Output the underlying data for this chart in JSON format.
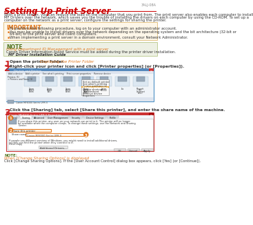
{
  "page_id": "3ALJ-08A",
  "title": "Setting Up Print Server",
  "intro_lines": [
    "With a print server, you can reduce the load on the computer that you print from. The print server also enables each computer to install",
    "MF Drivers over the network, which saves you the trouble of installing the drivers on each computer by using the CD-ROM. To set up a",
    "computer on the network as a print server, configure the settings for sharing the printer."
  ],
  "important_title": "IMPORTANT",
  "important_bullets": [
    "To perform the following procedure, log on to your computer with an administrator account.",
    "You may be unable to install drivers over the network depending on the operating system and the bit architecture (32-bit or 64-bit) of the print server and client computers.",
    "When implementing a print server in a domain environment, consult your Network Administrator."
  ],
  "note_title": "NOTE",
  "note_link": "Using Department ID Management with a print server",
  "note_text": "Canon Driver Information Assist Service must be added during the printer driver installation.",
  "note_bold": "MF Driver Installation Guide",
  "step1_num": "1",
  "step1_text": "Open the printer folder.",
  "step1_link": " Displaying the Printer Folder",
  "step2_num": "2",
  "step2_text": "Right-click your printer icon and click [Printer properties] (or [Properties]).",
  "step3_num": "3",
  "step3_text": "Click the [Sharing] tab, select [Share this printer], and enter the share name of the machine.",
  "bottom_note_title": "NOTE:",
  "bottom_note_link": "When [Change Sharing Options] is displayed",
  "bottom_note_text": "Click [Change Sharing Options]. If the [User Account Control] dialog box appears, click [Yes] (or [Continue]).",
  "colors": {
    "red_title": "#cc0000",
    "orange": "#e07820",
    "green": "#557722",
    "light_orange_bg": "#fdf6e8",
    "light_green_bg": "#edf0e4",
    "border_orange": "#ddb870",
    "border_green": "#b8c888",
    "dark_text": "#333333",
    "gray_text": "#888888",
    "step_red": "#cc2222",
    "line_red": "#cc0000",
    "win_blue": "#4a90c4",
    "win_title_red": "#cc3333",
    "win_bg": "#f0f4f8",
    "win_border": "#aabbcc"
  },
  "bg": "#ffffff"
}
